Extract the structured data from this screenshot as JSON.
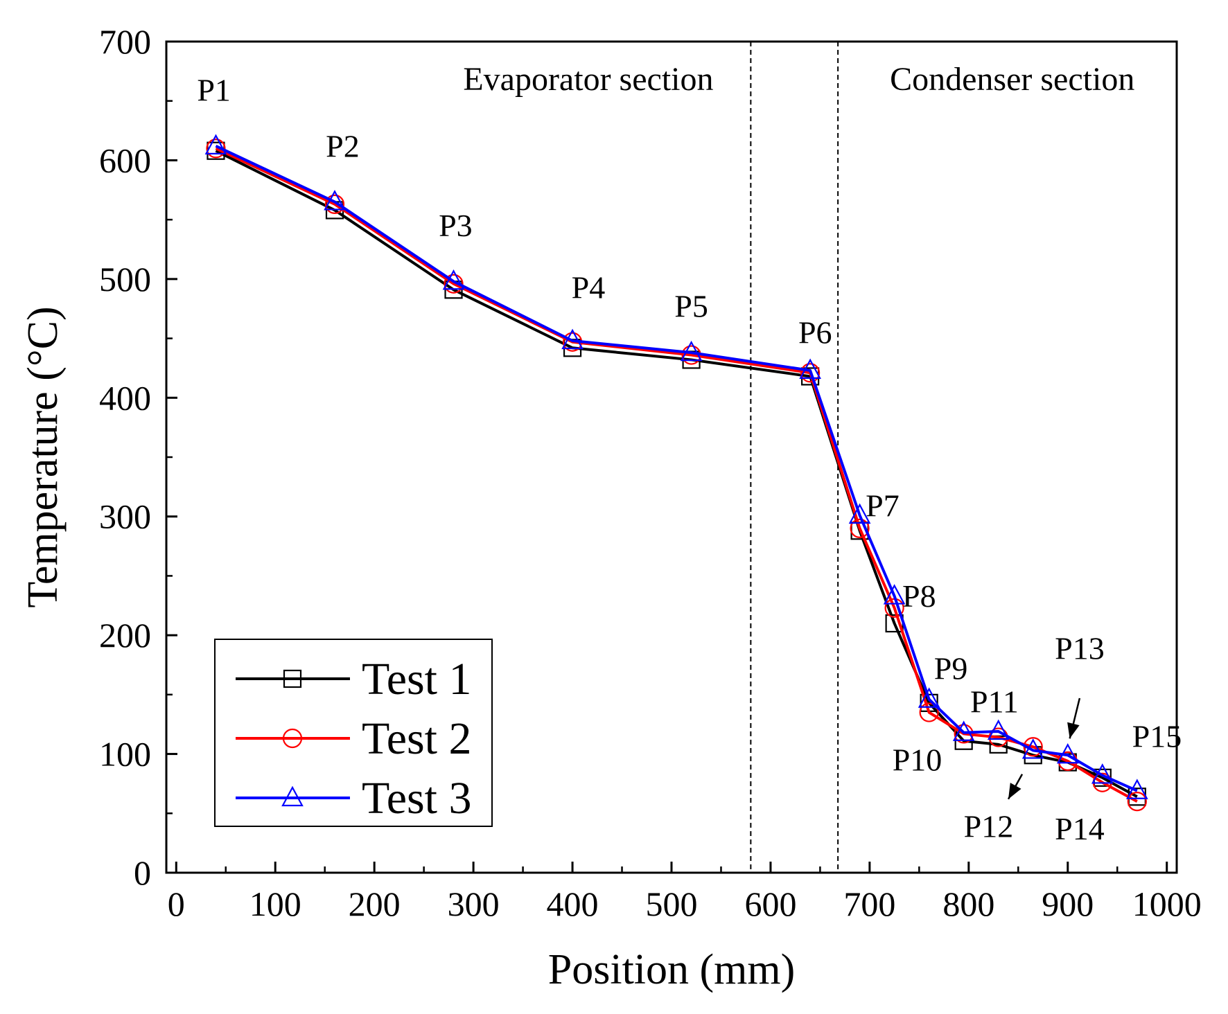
{
  "chart_data": {
    "type": "line",
    "xlabel": "Position (mm)",
    "ylabel": "Temperature (°C)",
    "xlim": [
      -10,
      1010
    ],
    "ylim": [
      0,
      700
    ],
    "x_ticks": [
      0,
      100,
      200,
      300,
      400,
      500,
      600,
      700,
      800,
      900,
      1000
    ],
    "y_ticks": [
      0,
      100,
      200,
      300,
      400,
      500,
      600,
      700
    ],
    "grid": false,
    "legend_position": "bottom-left",
    "section_dividers": [
      580,
      668
    ],
    "section_labels": [
      {
        "text": "Evaporator section",
        "x_data": 416
      },
      {
        "text": "Condenser section",
        "x_data": 844
      }
    ],
    "x": [
      40,
      160,
      280,
      400,
      520,
      640,
      690,
      725,
      760,
      795,
      830,
      865,
      900,
      935,
      970
    ],
    "series": [
      {
        "name": "Test 1",
        "marker": "square",
        "color": "#000000",
        "values": [
          608,
          558,
          491,
          442,
          432,
          418,
          288,
          210,
          143,
          111,
          108,
          99,
          93,
          80,
          64
        ]
      },
      {
        "name": "Test 2",
        "marker": "circle",
        "color": "#ff0000",
        "values": [
          610,
          563,
          496,
          447,
          436,
          421,
          290,
          223,
          135,
          117,
          114,
          106,
          94,
          76,
          60
        ]
      },
      {
        "name": "Test 3",
        "marker": "triangle",
        "color": "#0000ff",
        "values": [
          612,
          565,
          498,
          448,
          438,
          423,
          301,
          233,
          146,
          118,
          119,
          103,
          99,
          82,
          69
        ]
      }
    ],
    "point_labels": [
      {
        "text": "P1",
        "x_data": 38,
        "y_data": 650
      },
      {
        "text": "P2",
        "x_data": 168,
        "y_data": 603
      },
      {
        "text": "P3",
        "x_data": 282,
        "y_data": 536
      },
      {
        "text": "P4",
        "x_data": 416,
        "y_data": 484
      },
      {
        "text": "P5",
        "x_data": 520,
        "y_data": 468
      },
      {
        "text": "P6",
        "x_data": 645,
        "y_data": 446
      },
      {
        "text": "P7",
        "x_data": 713,
        "y_data": 300
      },
      {
        "text": "P8",
        "x_data": 750,
        "y_data": 224
      },
      {
        "text": "P9",
        "x_data": 782,
        "y_data": 163
      },
      {
        "text": "P10",
        "x_data": 748,
        "y_data": 86
      },
      {
        "text": "P11",
        "x_data": 826,
        "y_data": 135
      },
      {
        "text": "P12",
        "x_data": 820,
        "y_data": 30
      },
      {
        "text": "P13",
        "x_data": 912,
        "y_data": 180
      },
      {
        "text": "P14",
        "x_data": 912,
        "y_data": 28
      },
      {
        "text": "P15",
        "x_data": 990,
        "y_data": 106
      }
    ],
    "arrows": [
      {
        "from": [
          912,
          147
        ],
        "to": [
          902,
          113
        ]
      },
      {
        "from": [
          854,
          83
        ],
        "to": [
          840,
          62
        ]
      }
    ]
  }
}
